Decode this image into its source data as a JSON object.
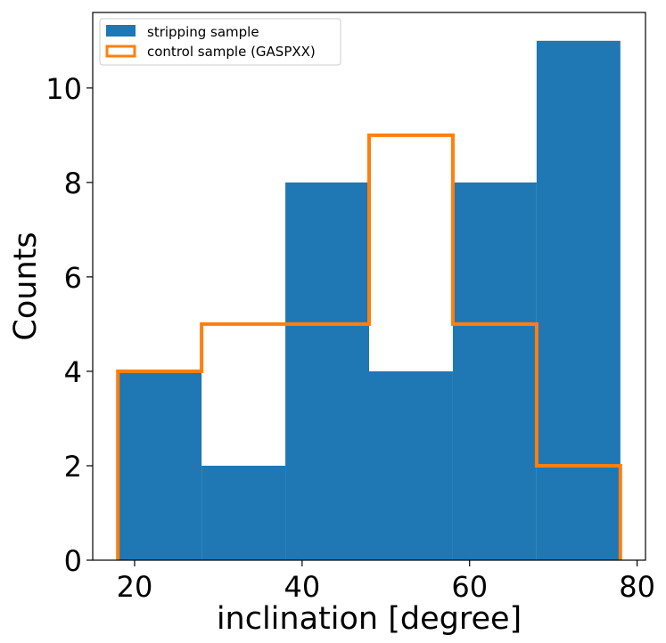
{
  "chart_data": {
    "type": "histogram",
    "bin_edges": [
      18,
      28,
      38,
      48,
      58,
      68,
      78
    ],
    "series": [
      {
        "name": "stripping sample",
        "style": "filled",
        "color": "#1f77b4",
        "values": [
          4,
          2,
          8,
          4,
          8,
          11
        ]
      },
      {
        "name": "control sample (GASPXX)",
        "style": "step",
        "color": "#ff7f0e",
        "values": [
          4,
          5,
          5,
          9,
          5,
          2
        ]
      }
    ],
    "xlabel": "inclination [degree]",
    "ylabel": "Counts",
    "xlim": [
      15,
      81
    ],
    "ylim": [
      0,
      11.6
    ],
    "xticks": [
      20,
      40,
      60,
      80
    ],
    "yticks": [
      0,
      2,
      4,
      6,
      8,
      10
    ],
    "legend_position": "top-left"
  }
}
